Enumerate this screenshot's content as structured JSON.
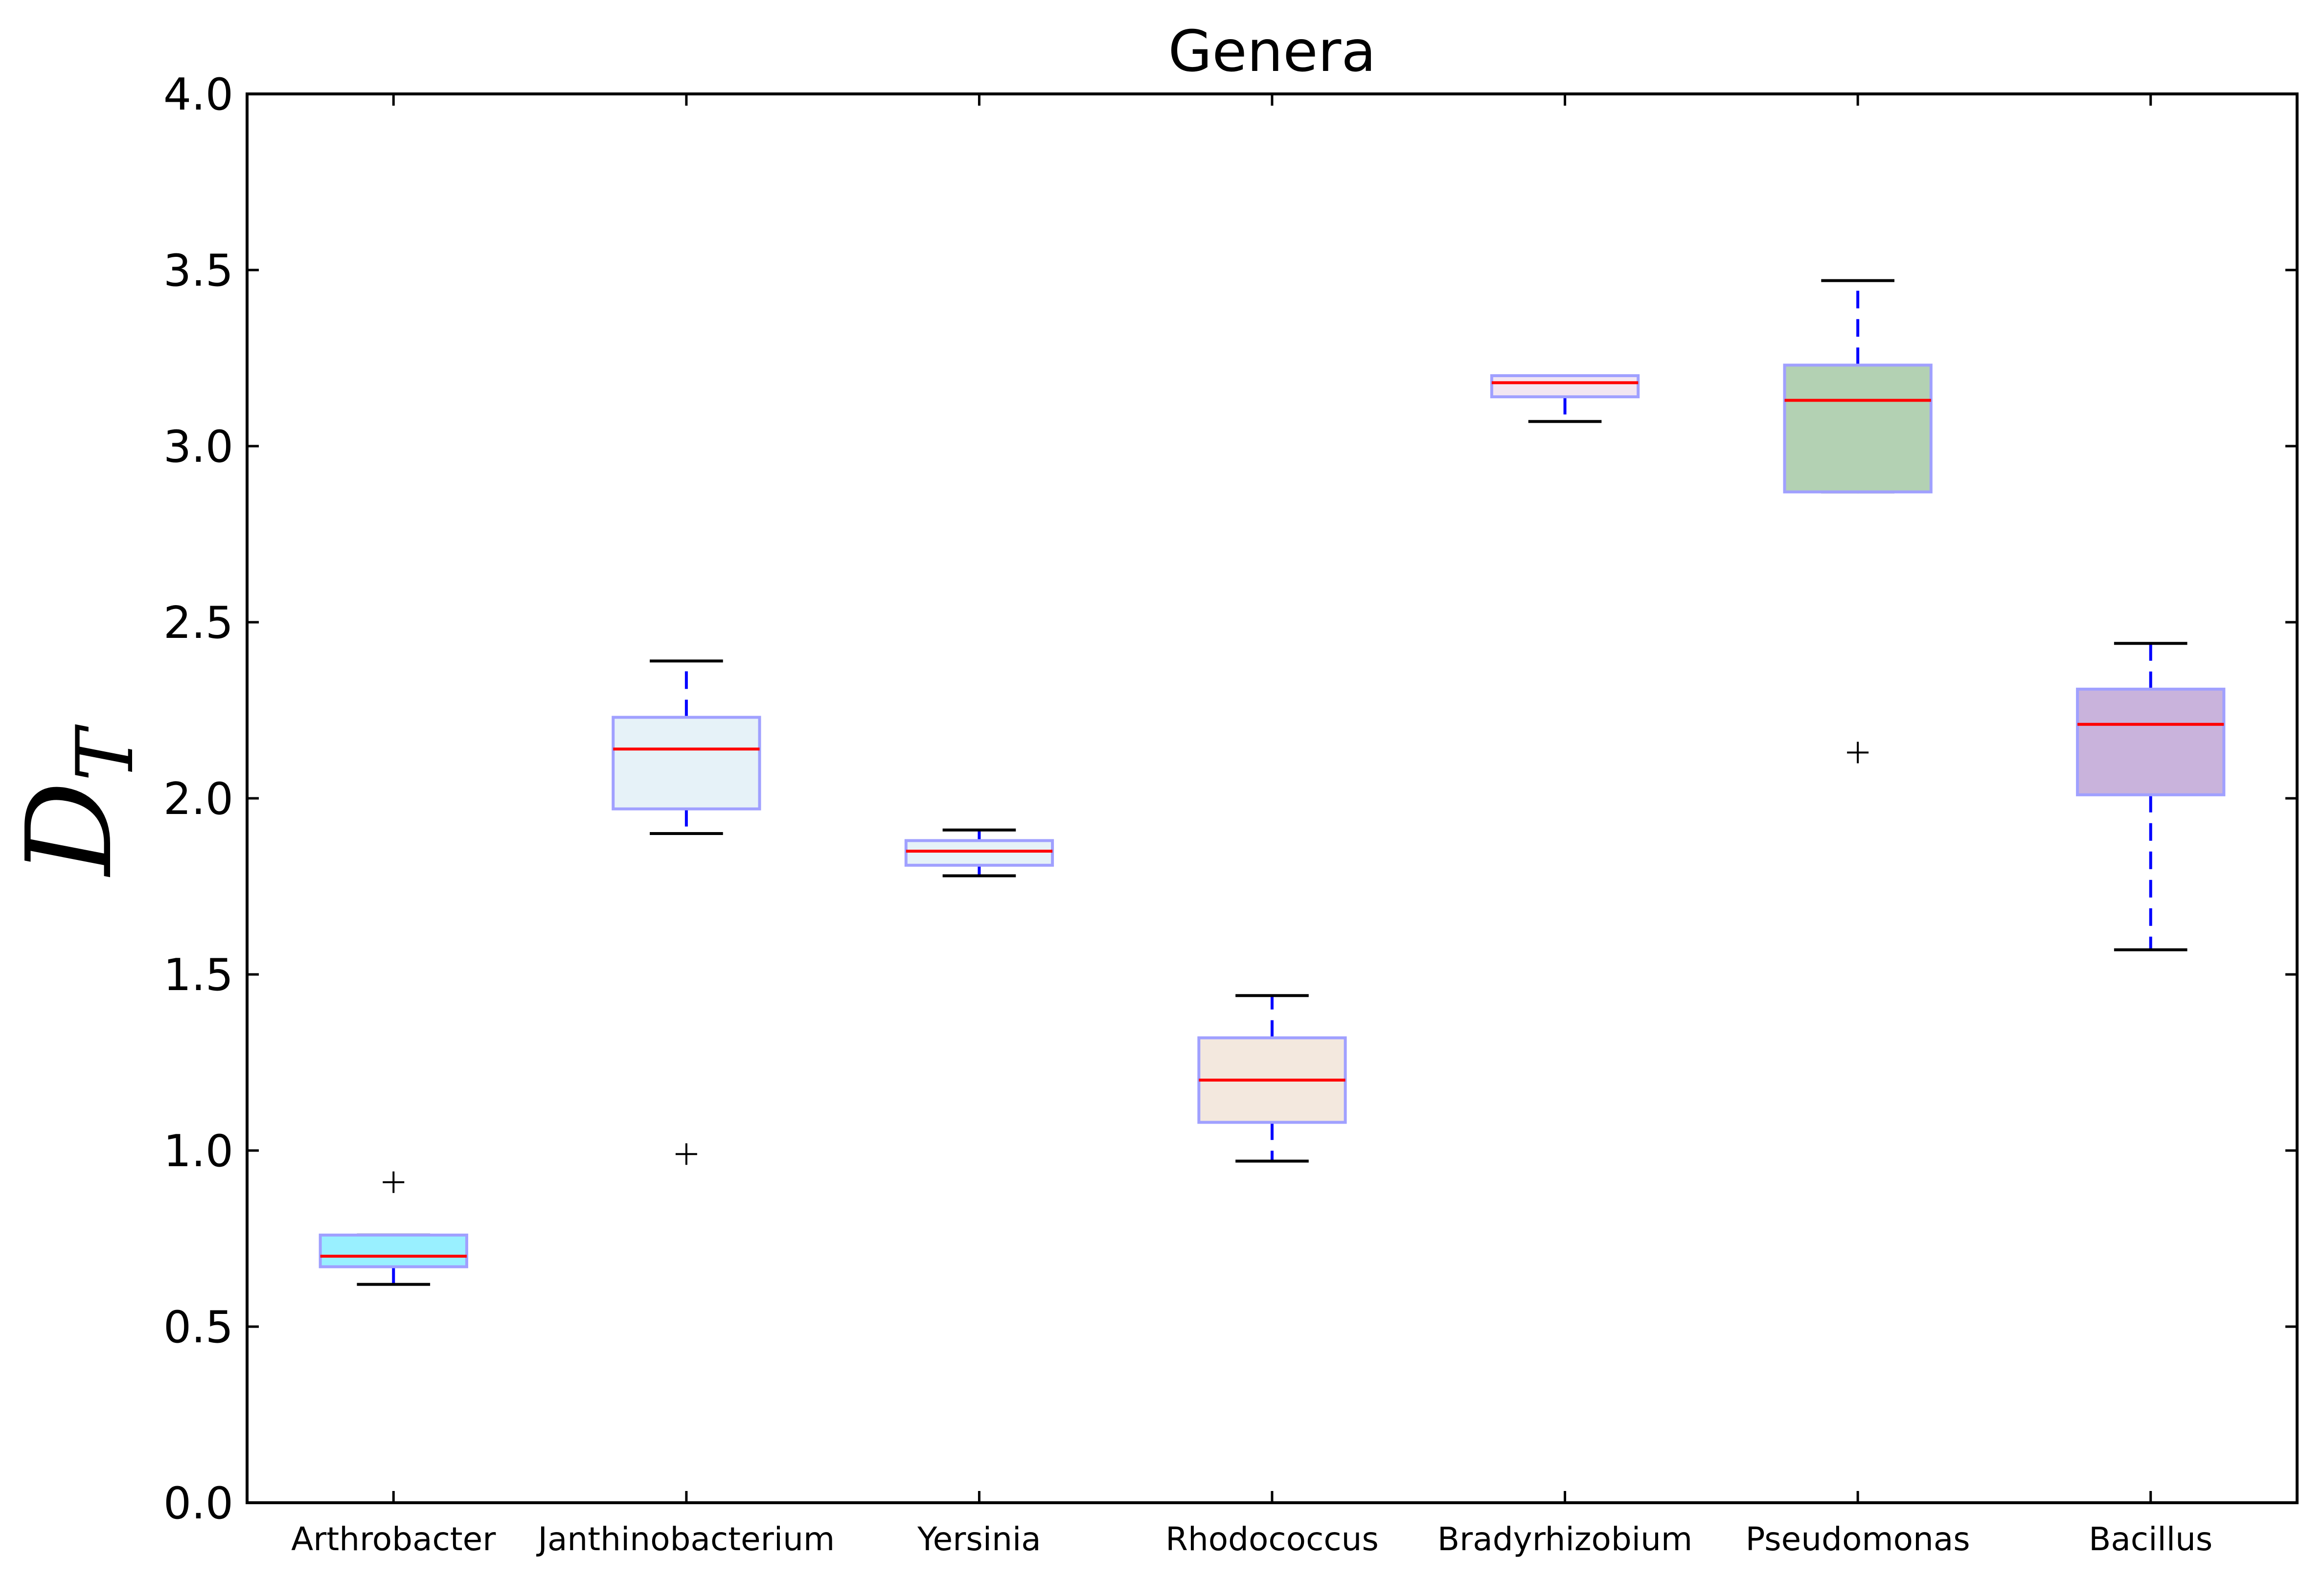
{
  "chart_data": {
    "type": "box",
    "title": "Genera",
    "ylabel": "D",
    "ylabel_subscript": "T",
    "xlabel": "",
    "ylim": [
      0.0,
      4.0
    ],
    "yticks": [
      "0.0",
      "0.5",
      "1.0",
      "1.5",
      "2.0",
      "2.5",
      "3.0",
      "3.5",
      "4.0"
    ],
    "grid": false,
    "legend": "none",
    "categories": [
      "Arthrobacter",
      "Janthinobacterium",
      "Yersinia",
      "Rhodococcus",
      "Bradyrhizobium",
      "Pseudomonas",
      "Bacillus"
    ],
    "boxes": [
      {
        "name": "Arthrobacter",
        "whislo": 0.62,
        "q1": 0.67,
        "med": 0.7,
        "q3": 0.76,
        "whishi": 0.76,
        "fliers": [
          0.91
        ],
        "color": "#99f0ff"
      },
      {
        "name": "Janthinobacterium",
        "whislo": 1.9,
        "q1": 1.97,
        "med": 2.14,
        "q3": 2.23,
        "whishi": 2.39,
        "fliers": [
          0.99
        ],
        "color": "#e6f2f8"
      },
      {
        "name": "Yersinia",
        "whislo": 1.78,
        "q1": 1.81,
        "med": 1.85,
        "q3": 1.88,
        "whishi": 1.91,
        "fliers": [],
        "color": "#e6f2f8"
      },
      {
        "name": "Rhodococcus",
        "whislo": 0.97,
        "q1": 1.08,
        "med": 1.2,
        "q3": 1.32,
        "whishi": 1.44,
        "fliers": [],
        "color": "#f3e8de"
      },
      {
        "name": "Bradyrhizobium",
        "whislo": 3.07,
        "q1": 3.14,
        "med": 3.18,
        "q3": 3.2,
        "whishi": 3.2,
        "fliers": [],
        "color": "#f2e6f2"
      },
      {
        "name": "Pseudomonas",
        "whislo": 2.87,
        "q1": 2.87,
        "med": 3.13,
        "q3": 3.23,
        "whishi": 3.47,
        "fliers": [
          2.13
        ],
        "color": "#b3d1b3"
      },
      {
        "name": "Bacillus",
        "whislo": 1.57,
        "q1": 2.01,
        "med": 2.21,
        "q3": 2.31,
        "whishi": 2.44,
        "fliers": [],
        "color": "#c9b3dc"
      }
    ],
    "colors": {
      "box_edge": "#a0a0ff",
      "median": "#ff0000",
      "whisker": "#0000ff",
      "cap": "#000000",
      "flier": "#000000"
    }
  }
}
